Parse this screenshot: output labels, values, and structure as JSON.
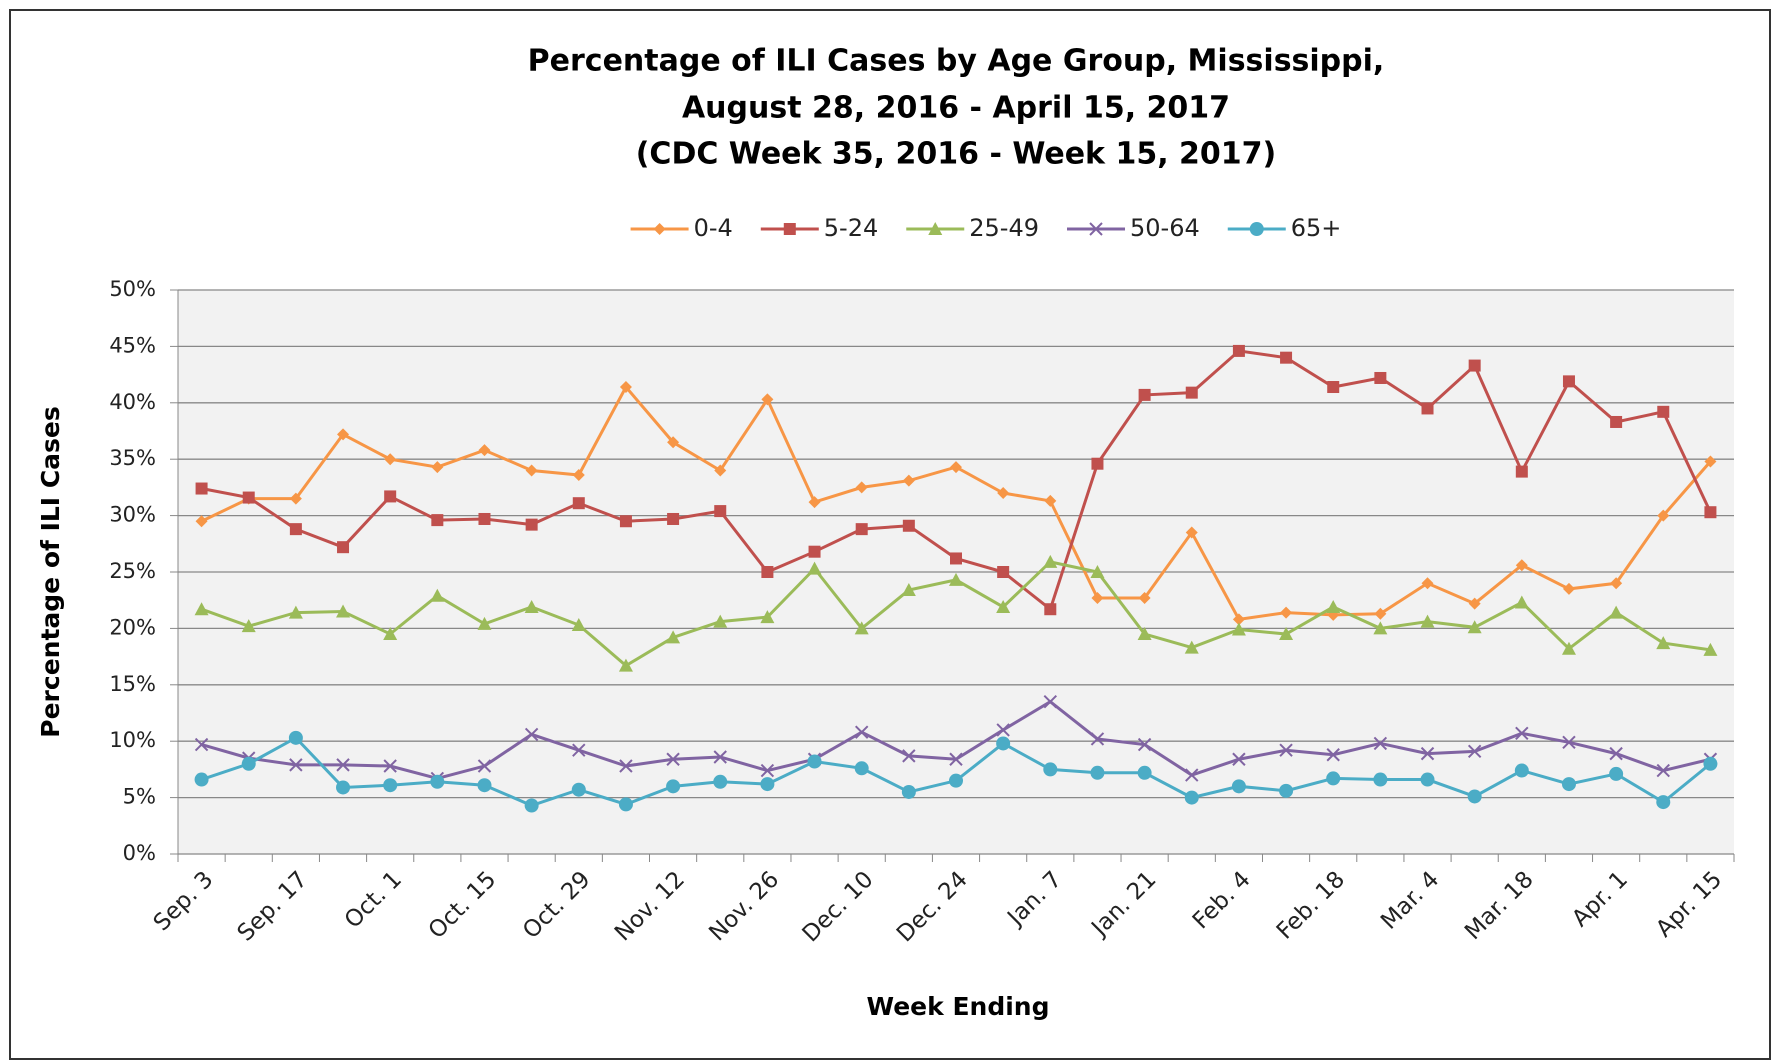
{
  "chart_data": {
    "type": "line",
    "title": [
      "Percentage of ILI Cases by Age Group, Mississippi,",
      "August 28, 2016 - April 15, 2017",
      "(CDC Week 35, 2016 - Week 15, 2017)"
    ],
    "x_label": "Week Ending",
    "y_label": "Percentage of ILI Cases",
    "categories": [
      "Sep. 3",
      null,
      "Sep. 17",
      null,
      "Oct. 1",
      null,
      "Oct. 15",
      null,
      "Oct. 29",
      null,
      "Nov. 12",
      null,
      "Nov. 26",
      null,
      "Dec. 10",
      null,
      "Dec. 24",
      null,
      "Jan. 7",
      null,
      "Jan. 21",
      null,
      "Feb. 4",
      null,
      "Feb. 18",
      null,
      "Mar. 4",
      null,
      "Mar. 18",
      null,
      "Apr. 1",
      null,
      "Apr. 15"
    ],
    "ylim": [
      0,
      50
    ],
    "yticks": [
      {
        "value": 0,
        "label": "0%"
      },
      {
        "value": 5,
        "label": "5%"
      },
      {
        "value": 10,
        "label": "10%"
      },
      {
        "value": 15,
        "label": "15%"
      },
      {
        "value": 20,
        "label": "20%"
      },
      {
        "value": 25,
        "label": "25%"
      },
      {
        "value": 30,
        "label": "30%"
      },
      {
        "value": 35,
        "label": "35%"
      },
      {
        "value": 40,
        "label": "40%"
      },
      {
        "value": 45,
        "label": "45%"
      },
      {
        "value": 50,
        "label": "50%"
      }
    ],
    "grid": true,
    "legend": "top",
    "series": [
      {
        "name": "0-4",
        "color": "#f79646",
        "marker": "diamond",
        "values": [
          29.5,
          31.5,
          31.5,
          37.2,
          35,
          34.3,
          35.8,
          34,
          33.6,
          41.4,
          36.5,
          34,
          40.3,
          31.2,
          32.5,
          33.1,
          34.3,
          32,
          31.3,
          22.7,
          22.7,
          28.5,
          20.8,
          21.4,
          21.2,
          21.3,
          24,
          22.2,
          25.6,
          23.5,
          24,
          30,
          34.8
        ]
      },
      {
        "name": "5-24",
        "color": "#c0504d",
        "marker": "square",
        "values": [
          32.4,
          31.6,
          28.8,
          27.2,
          31.7,
          29.6,
          29.7,
          29.2,
          31.1,
          29.5,
          29.7,
          30.4,
          25,
          26.8,
          28.8,
          29.1,
          26.2,
          25,
          21.7,
          34.6,
          40.7,
          40.9,
          44.6,
          44,
          41.4,
          42.2,
          39.5,
          43.3,
          33.9,
          41.9,
          38.3,
          39.2,
          30.3
        ]
      },
      {
        "name": "25-49",
        "color": "#9bbb59",
        "marker": "triangle",
        "values": [
          21.7,
          20.2,
          21.4,
          21.5,
          19.5,
          22.9,
          20.4,
          21.9,
          20.3,
          16.7,
          19.2,
          20.6,
          21,
          25.3,
          20,
          23.4,
          24.3,
          21.9,
          25.9,
          25,
          19.5,
          18.3,
          19.9,
          19.5,
          21.9,
          20,
          20.6,
          20.1,
          22.3,
          18.2,
          21.4,
          18.7,
          18.1
        ]
      },
      {
        "name": "50-64",
        "color": "#8064a2",
        "marker": "x",
        "values": [
          9.7,
          8.5,
          7.9,
          7.9,
          7.8,
          6.7,
          7.8,
          10.6,
          9.2,
          7.8,
          8.4,
          8.6,
          7.4,
          8.4,
          10.8,
          8.7,
          8.4,
          11,
          13.5,
          10.2,
          9.7,
          7,
          8.4,
          9.2,
          8.8,
          9.8,
          8.9,
          9.1,
          10.7,
          9.9,
          8.9,
          7.4,
          8.4
        ]
      },
      {
        "name": "65+",
        "color": "#4bacc6",
        "marker": "circle",
        "values": [
          6.6,
          8,
          10.3,
          5.9,
          6.1,
          6.4,
          6.1,
          4.3,
          5.7,
          4.4,
          6,
          6.4,
          6.2,
          8.2,
          7.6,
          5.5,
          6.5,
          9.8,
          7.5,
          7.2,
          7.2,
          5,
          6,
          5.6,
          6.7,
          6.6,
          6.6,
          5.1,
          7.4,
          6.2,
          7.1,
          4.6,
          8
        ]
      }
    ]
  }
}
